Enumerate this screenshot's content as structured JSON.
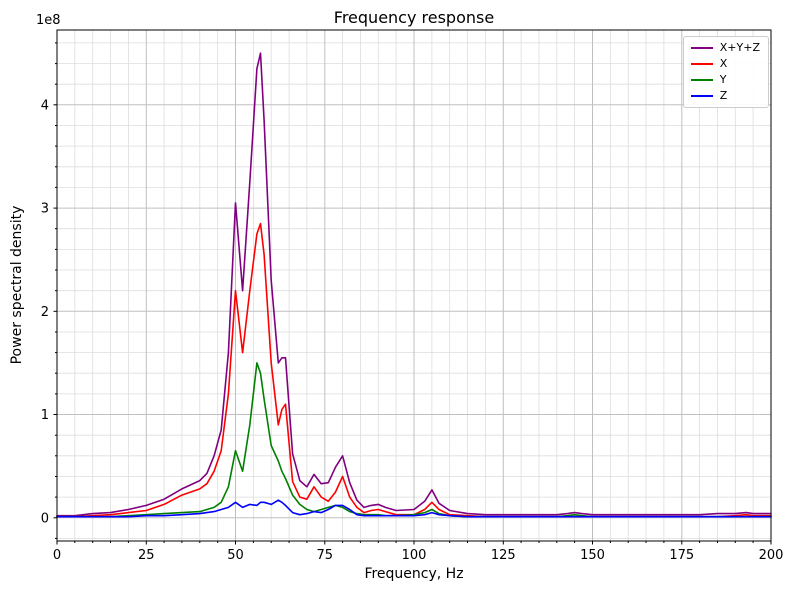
{
  "chart_data": {
    "type": "line",
    "title": "Frequency response",
    "xlabel": "Frequency, Hz",
    "ylabel": "Power spectral density",
    "offset_text": "1e8",
    "y_unit_multiplier": 100000000.0,
    "xlim": [
      0,
      200
    ],
    "ylim": [
      -0.225,
      4.725
    ],
    "xticks": [
      0,
      25,
      50,
      75,
      100,
      125,
      150,
      175,
      200
    ],
    "yticks": [
      0,
      1,
      2,
      3,
      4
    ],
    "x_minor_step": 5,
    "y_minor_step": 0.2,
    "grid": true,
    "legend_position": "upper right",
    "colors": {
      "major_grid": "#c0c0c0",
      "minor_grid": "#dddddd",
      "spine": "#000000"
    },
    "x": [
      0,
      5,
      10,
      15,
      20,
      25,
      30,
      35,
      40,
      42,
      44,
      46,
      48,
      50,
      52,
      54,
      56,
      57,
      58,
      60,
      62,
      63,
      64,
      66,
      68,
      70,
      72,
      74,
      76,
      78,
      80,
      82,
      84,
      86,
      88,
      90,
      92,
      95,
      100,
      103,
      105,
      107,
      110,
      115,
      120,
      125,
      130,
      135,
      140,
      143,
      145,
      147,
      150,
      155,
      160,
      165,
      170,
      175,
      180,
      185,
      190,
      193,
      195,
      197,
      200
    ],
    "series": [
      {
        "name": "X+Y+Z",
        "color": "#800080",
        "values": [
          0.02,
          0.02,
          0.04,
          0.05,
          0.08,
          0.12,
          0.18,
          0.28,
          0.36,
          0.43,
          0.6,
          0.85,
          1.6,
          3.05,
          2.2,
          3.25,
          4.35,
          4.5,
          3.85,
          2.3,
          1.5,
          1.55,
          1.55,
          0.62,
          0.36,
          0.3,
          0.42,
          0.33,
          0.34,
          0.49,
          0.6,
          0.34,
          0.17,
          0.1,
          0.12,
          0.13,
          0.1,
          0.07,
          0.08,
          0.16,
          0.27,
          0.14,
          0.07,
          0.04,
          0.03,
          0.03,
          0.03,
          0.03,
          0.03,
          0.04,
          0.05,
          0.04,
          0.03,
          0.03,
          0.03,
          0.03,
          0.03,
          0.03,
          0.03,
          0.04,
          0.04,
          0.05,
          0.04,
          0.04,
          0.04
        ]
      },
      {
        "name": "X",
        "color": "#ff0000",
        "values": [
          0.01,
          0.01,
          0.02,
          0.03,
          0.05,
          0.07,
          0.13,
          0.22,
          0.28,
          0.33,
          0.45,
          0.65,
          1.2,
          2.2,
          1.6,
          2.2,
          2.75,
          2.85,
          2.55,
          1.5,
          0.9,
          1.05,
          1.1,
          0.35,
          0.2,
          0.18,
          0.3,
          0.2,
          0.16,
          0.25,
          0.4,
          0.2,
          0.1,
          0.05,
          0.07,
          0.08,
          0.06,
          0.03,
          0.03,
          0.08,
          0.15,
          0.08,
          0.03,
          0.02,
          0.01,
          0.01,
          0.01,
          0.01,
          0.01,
          0.01,
          0.01,
          0.01,
          0.01,
          0.01,
          0.01,
          0.01,
          0.01,
          0.01,
          0.01,
          0.01,
          0.02,
          0.03,
          0.02,
          0.02,
          0.02
        ]
      },
      {
        "name": "Y",
        "color": "#008000",
        "values": [
          0.01,
          0.01,
          0.01,
          0.01,
          0.02,
          0.03,
          0.04,
          0.05,
          0.06,
          0.08,
          0.1,
          0.15,
          0.3,
          0.65,
          0.45,
          0.9,
          1.5,
          1.4,
          1.15,
          0.7,
          0.55,
          0.45,
          0.38,
          0.22,
          0.13,
          0.08,
          0.06,
          0.08,
          0.1,
          0.12,
          0.1,
          0.06,
          0.04,
          0.03,
          0.03,
          0.03,
          0.02,
          0.02,
          0.03,
          0.05,
          0.08,
          0.04,
          0.02,
          0.01,
          0.01,
          0.01,
          0.01,
          0.01,
          0.01,
          0.02,
          0.03,
          0.02,
          0.01,
          0.01,
          0.01,
          0.01,
          0.01,
          0.01,
          0.01,
          0.01,
          0.01,
          0.01,
          0.01,
          0.01,
          0.01
        ]
      },
      {
        "name": "Z",
        "color": "#0000ff",
        "values": [
          0.01,
          0.01,
          0.01,
          0.01,
          0.01,
          0.02,
          0.02,
          0.03,
          0.04,
          0.05,
          0.06,
          0.08,
          0.1,
          0.15,
          0.1,
          0.13,
          0.12,
          0.15,
          0.15,
          0.13,
          0.17,
          0.15,
          0.12,
          0.05,
          0.03,
          0.04,
          0.06,
          0.05,
          0.08,
          0.12,
          0.12,
          0.08,
          0.03,
          0.02,
          0.02,
          0.02,
          0.02,
          0.02,
          0.02,
          0.03,
          0.05,
          0.03,
          0.02,
          0.01,
          0.01,
          0.01,
          0.01,
          0.01,
          0.01,
          0.01,
          0.01,
          0.01,
          0.01,
          0.01,
          0.01,
          0.01,
          0.01,
          0.01,
          0.01,
          0.01,
          0.01,
          0.01,
          0.01,
          0.01,
          0.01
        ]
      }
    ]
  }
}
